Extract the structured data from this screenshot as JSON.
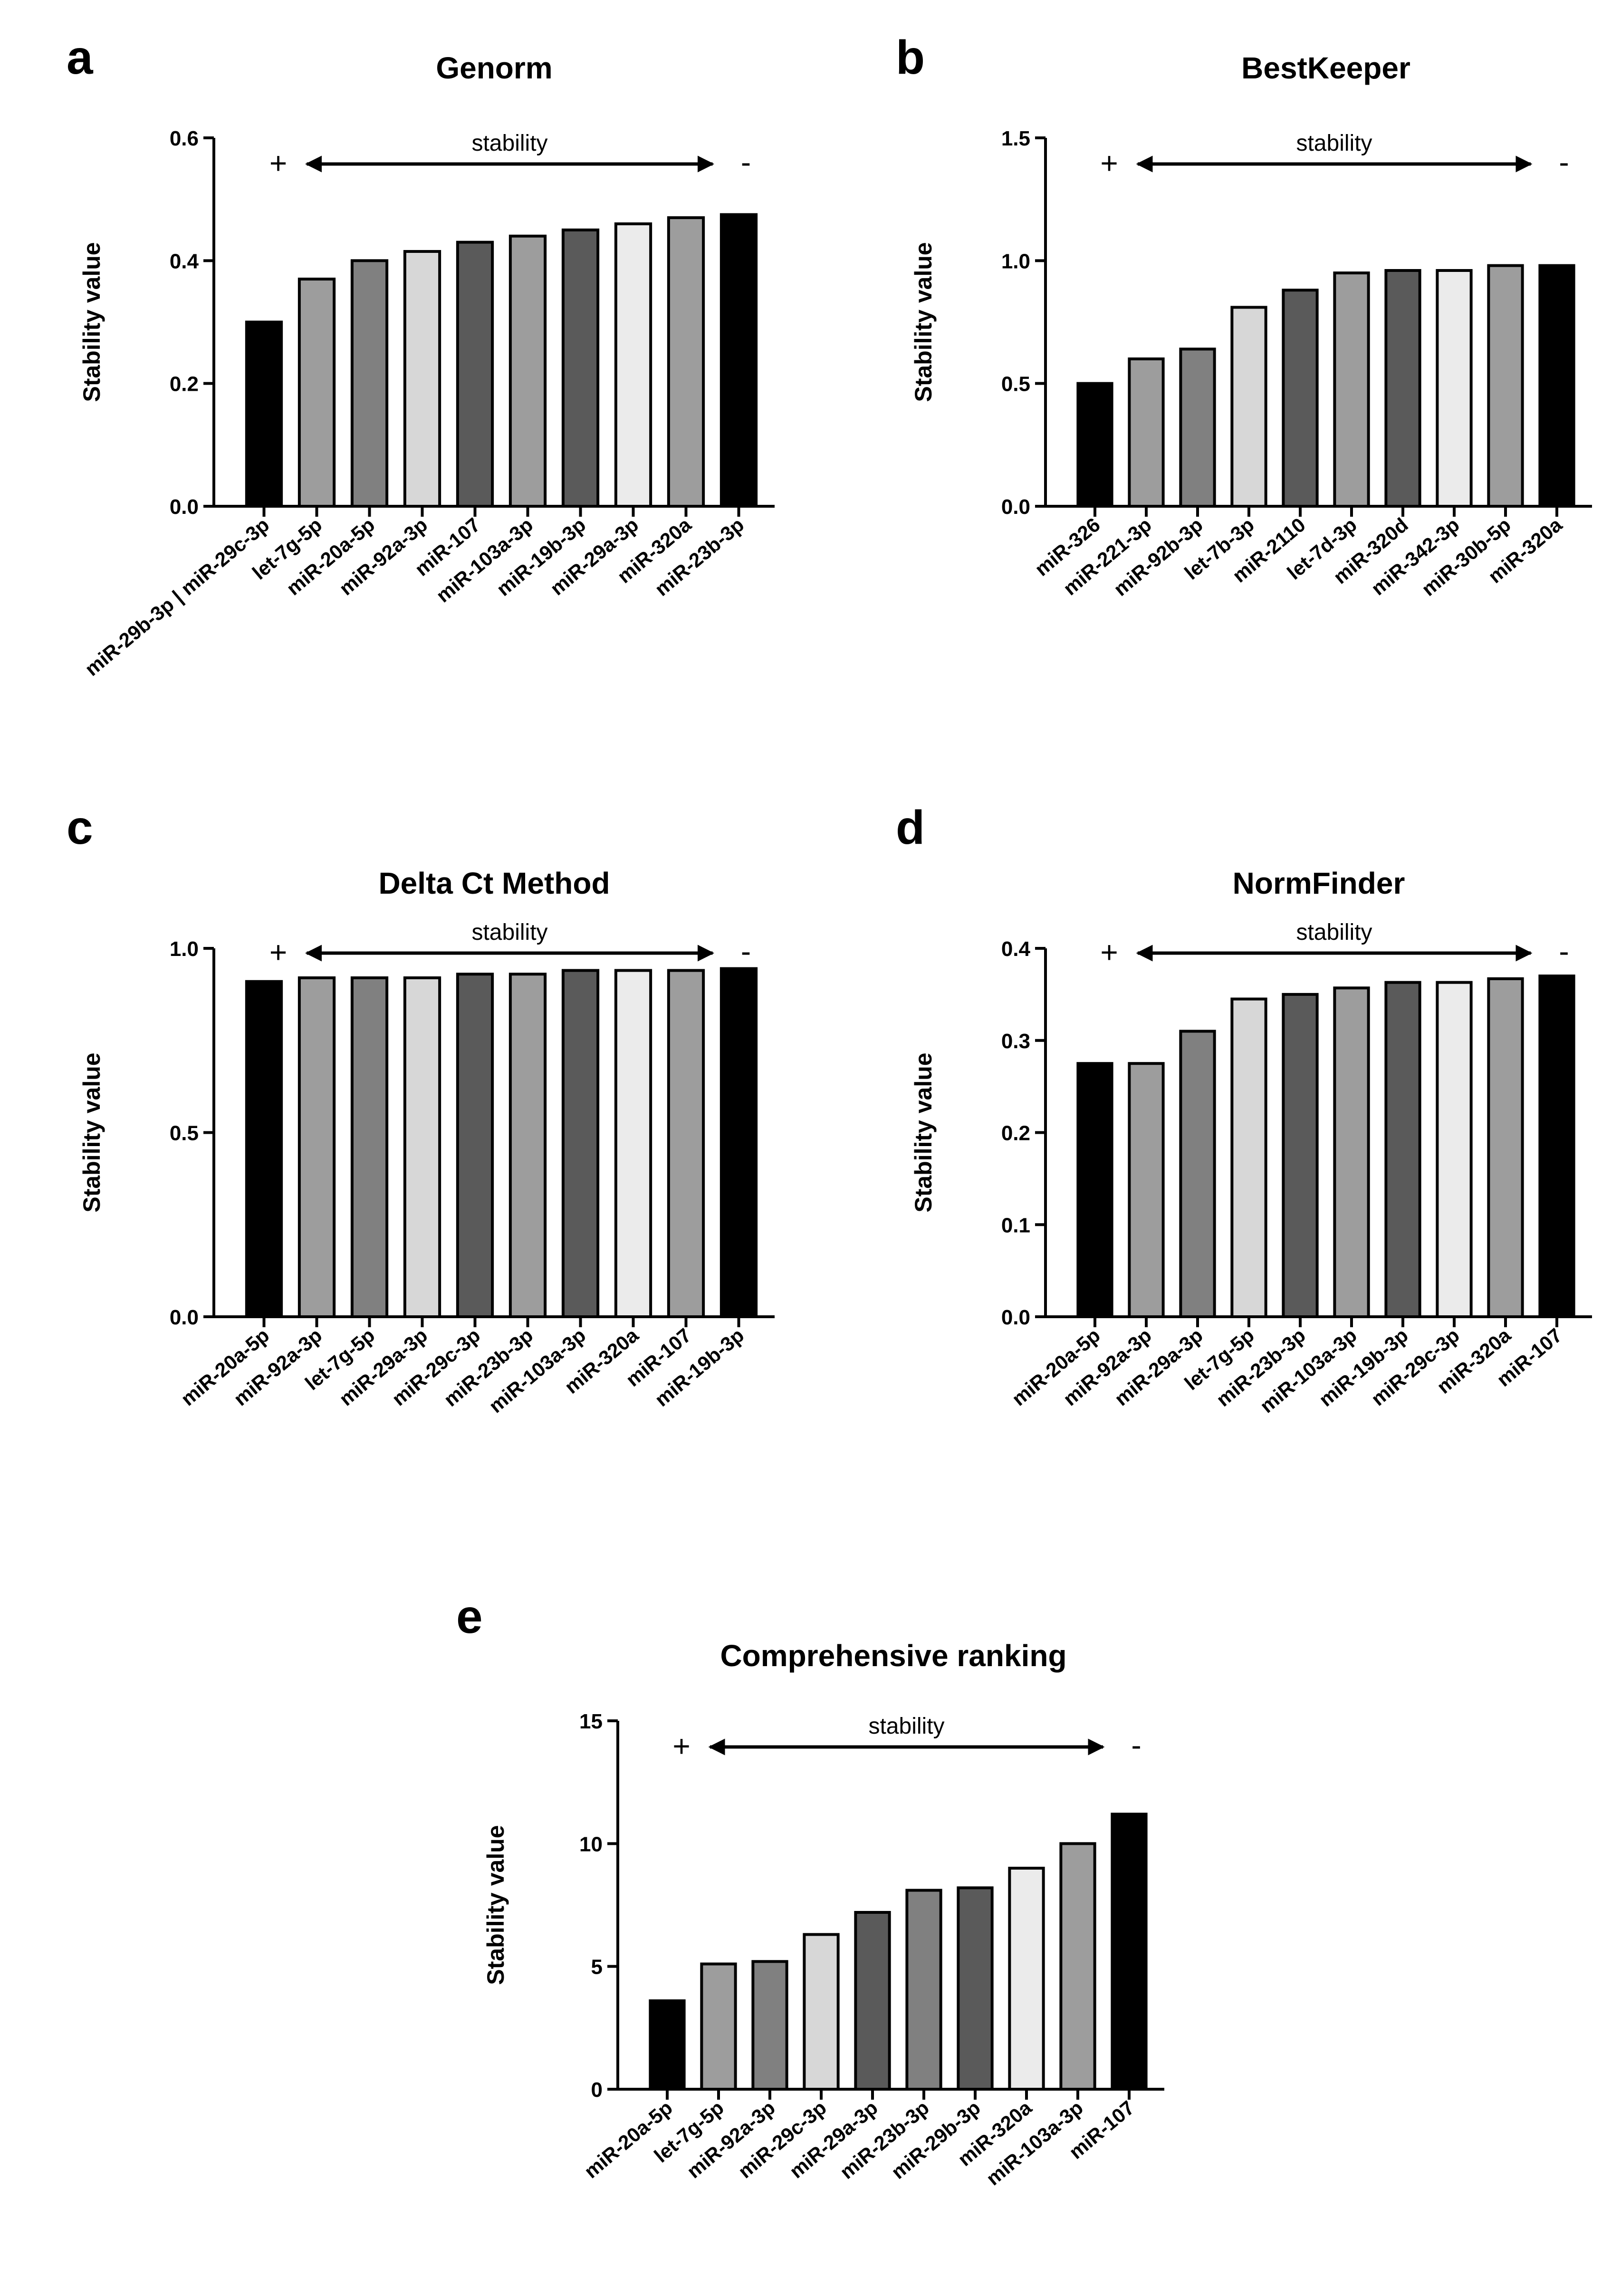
{
  "colors": {
    "black": "#000000",
    "dark_gray": "#5a5a5a",
    "medium_gray": "#9d9d9d",
    "light_gray": "#d7d7d7",
    "very_light_gray": "#ebebeb"
  },
  "chart_data": [
    {
      "panel": "a",
      "type": "bar",
      "title": "Genorm",
      "ylabel": "Stability value",
      "ylim": [
        0,
        0.6
      ],
      "yticks": [
        "0.0",
        "0.2",
        "0.4",
        "0.6"
      ],
      "stability_label": "stability",
      "plus": "+",
      "minus": "-",
      "categories": [
        "miR-29b-3p | miR-29c-3p",
        "let-7g-5p",
        "miR-20a-5p",
        "miR-92a-3p",
        "miR-107",
        "miR-103a-3p",
        "miR-19b-3p",
        "miR-29a-3p",
        "miR-320a",
        "miR-23b-3p"
      ],
      "values": [
        0.3,
        0.37,
        0.4,
        0.415,
        0.43,
        0.44,
        0.45,
        0.46,
        0.47,
        0.475
      ],
      "bar_colors": [
        "#000000",
        "#9d9d9d",
        "#808080",
        "#d7d7d7",
        "#5a5a5a",
        "#9d9d9d",
        "#5a5a5a",
        "#ebebeb",
        "#9d9d9d",
        "#000000"
      ]
    },
    {
      "panel": "b",
      "type": "bar",
      "title": "BestKeeper",
      "ylabel": "Stability value",
      "ylim": [
        0,
        1.5
      ],
      "yticks": [
        "0.0",
        "0.5",
        "1.0",
        "1.5"
      ],
      "stability_label": "stability",
      "plus": "+",
      "minus": "-",
      "categories": [
        "miR-326",
        "miR-221-3p",
        "miR-92b-3p",
        "let-7b-3p",
        "miR-2110",
        "let-7d-3p",
        "miR-320d",
        "miR-342-3p",
        "miR-30b-5p",
        "miR-320a"
      ],
      "values": [
        0.5,
        0.6,
        0.64,
        0.81,
        0.88,
        0.95,
        0.96,
        0.96,
        0.98,
        0.98
      ],
      "bar_colors": [
        "#000000",
        "#9d9d9d",
        "#808080",
        "#d7d7d7",
        "#5a5a5a",
        "#9d9d9d",
        "#5a5a5a",
        "#ebebeb",
        "#9d9d9d",
        "#000000"
      ]
    },
    {
      "panel": "c",
      "type": "bar",
      "title": "Delta Ct Method",
      "ylabel": "Stability value",
      "ylim": [
        0,
        1.0
      ],
      "yticks": [
        "0.0",
        "0.5",
        "1.0"
      ],
      "stability_label": "stability",
      "plus": "+",
      "minus": "-",
      "categories": [
        "miR-20a-5p",
        "miR-92a-3p",
        "let-7g-5p",
        "miR-29a-3p",
        "miR-29c-3p",
        "miR-23b-3p",
        "miR-103a-3p",
        "miR-320a",
        "miR-107",
        "miR-19b-3p"
      ],
      "values": [
        0.91,
        0.92,
        0.92,
        0.92,
        0.93,
        0.93,
        0.94,
        0.94,
        0.94,
        0.945
      ],
      "bar_colors": [
        "#000000",
        "#9d9d9d",
        "#808080",
        "#d7d7d7",
        "#5a5a5a",
        "#9d9d9d",
        "#5a5a5a",
        "#ebebeb",
        "#9d9d9d",
        "#000000"
      ]
    },
    {
      "panel": "d",
      "type": "bar",
      "title": "NormFinder",
      "ylabel": "Stability value",
      "ylim": [
        0,
        0.4
      ],
      "yticks": [
        "0.0",
        "0.1",
        "0.2",
        "0.3",
        "0.4"
      ],
      "stability_label": "stability",
      "plus": "+",
      "minus": "-",
      "categories": [
        "miR-20a-5p",
        "miR-92a-3p",
        "miR-29a-3p",
        "let-7g-5p",
        "miR-23b-3p",
        "miR-103a-3p",
        "miR-19b-3p",
        "miR-29c-3p",
        "miR-320a",
        "miR-107"
      ],
      "values": [
        0.275,
        0.275,
        0.31,
        0.345,
        0.35,
        0.357,
        0.363,
        0.363,
        0.367,
        0.37
      ],
      "bar_colors": [
        "#000000",
        "#9d9d9d",
        "#808080",
        "#d7d7d7",
        "#5a5a5a",
        "#9d9d9d",
        "#5a5a5a",
        "#ebebeb",
        "#9d9d9d",
        "#000000"
      ]
    },
    {
      "panel": "e",
      "type": "bar",
      "title": "Comprehensive ranking",
      "ylabel": "Stability value",
      "ylim": [
        0,
        15
      ],
      "yticks": [
        "0",
        "5",
        "10",
        "15"
      ],
      "stability_label": "stability",
      "plus": "+",
      "minus": "-",
      "categories": [
        "miR-20a-5p",
        "let-7g-5p",
        "miR-92a-3p",
        "miR-29c-3p",
        "miR-29a-3p",
        "miR-23b-3p",
        "miR-29b-3p",
        "miR-320a",
        "miR-103a-3p",
        "miR-107"
      ],
      "values": [
        3.6,
        5.1,
        5.2,
        6.3,
        7.2,
        8.1,
        8.2,
        9.0,
        10.0,
        11.2
      ],
      "bar_colors": [
        "#000000",
        "#9d9d9d",
        "#808080",
        "#d7d7d7",
        "#5a5a5a",
        "#808080",
        "#5a5a5a",
        "#ebebeb",
        "#9d9d9d",
        "#000000"
      ]
    }
  ]
}
